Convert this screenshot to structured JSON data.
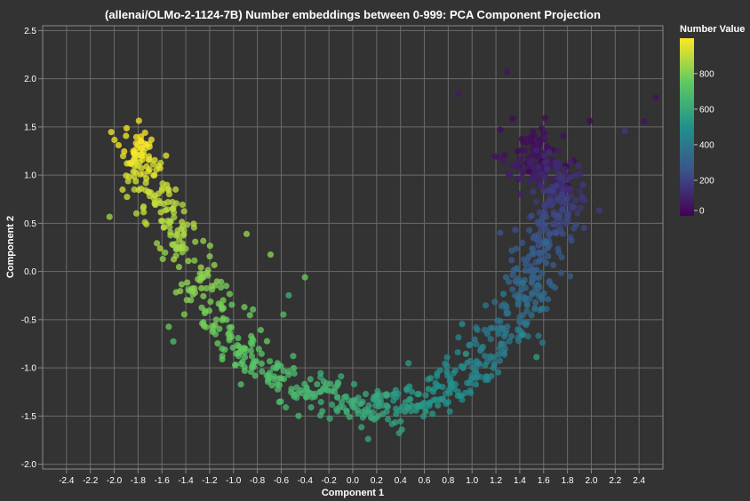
{
  "chart_data": {
    "type": "scatter",
    "title": "(allenai/OLMo-2-1124-7B) Number embeddings between 0-999: PCA Component Projection",
    "xlabel": "Component 1",
    "ylabel": "Component 2",
    "xlim": [
      -2.6,
      2.6
    ],
    "ylim": [
      -2.05,
      2.55
    ],
    "x_ticks": [
      "-2.4",
      "-2.2",
      "-2.0",
      "-1.8",
      "-1.6",
      "-1.4",
      "-1.2",
      "-1.0",
      "-0.8",
      "-0.6",
      "-0.4",
      "-0.2",
      "0.0",
      "0.2",
      "0.4",
      "0.6",
      "0.8",
      "1.0",
      "1.2",
      "1.4",
      "1.6",
      "1.8",
      "2.0",
      "2.2",
      "2.4"
    ],
    "y_ticks": [
      "-2.0",
      "-1.5",
      "-1.0",
      "-0.5",
      "0.0",
      "0.5",
      "1.0",
      "1.5",
      "2.0",
      "2.5"
    ],
    "grid": true,
    "legend": {
      "title": "Number Value",
      "labels": [
        "800",
        "600",
        "400",
        "200",
        "0"
      ],
      "range": [
        0,
        999
      ],
      "placement": "right"
    },
    "colorscale": [
      "#440154",
      "#3b528b",
      "#21918c",
      "#5ec962",
      "#fde725"
    ],
    "point_count": 1000,
    "trajectory": [
      {
        "value": 0,
        "x": 1.7,
        "y": 1.0
      },
      {
        "value": 30,
        "x": 1.6,
        "y": 1.4
      },
      {
        "value": 80,
        "x": 1.45,
        "y": 1.05
      },
      {
        "value": 120,
        "x": 1.75,
        "y": 1.0
      },
      {
        "value": 180,
        "x": 1.75,
        "y": 0.75
      },
      {
        "value": 240,
        "x": 1.65,
        "y": 0.4
      },
      {
        "value": 300,
        "x": 1.5,
        "y": 0.0
      },
      {
        "value": 360,
        "x": 1.4,
        "y": -0.4
      },
      {
        "value": 420,
        "x": 1.15,
        "y": -0.85
      },
      {
        "value": 480,
        "x": 0.85,
        "y": -1.2
      },
      {
        "value": 540,
        "x": 0.5,
        "y": -1.38
      },
      {
        "value": 600,
        "x": 0.1,
        "y": -1.4
      },
      {
        "value": 650,
        "x": -0.3,
        "y": -1.32
      },
      {
        "value": 700,
        "x": -0.7,
        "y": -1.1
      },
      {
        "value": 750,
        "x": -1.0,
        "y": -0.75
      },
      {
        "value": 800,
        "x": -1.2,
        "y": -0.25
      },
      {
        "value": 850,
        "x": -1.45,
        "y": 0.25
      },
      {
        "value": 900,
        "x": -1.6,
        "y": 0.7
      },
      {
        "value": 950,
        "x": -1.75,
        "y": 1.15
      },
      {
        "value": 999,
        "x": -1.85,
        "y": 1.35
      }
    ]
  }
}
